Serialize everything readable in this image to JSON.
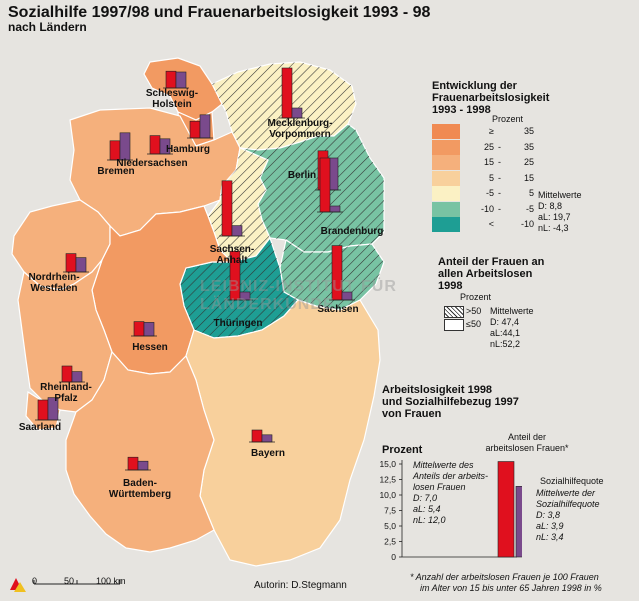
{
  "title": "Sozialhilfe 1997/98 und Frauenarbeitslosigkeit 1993 - 98",
  "subtitle": "nach Ländern",
  "legend1": {
    "title_lines": [
      "Entwicklung der",
      "Frauenarbeitslosigkeit",
      "1993 - 1998"
    ],
    "unit": "Prozent",
    "classes": [
      {
        "a": "≥",
        "b": "35",
        "color": "#f08a52"
      },
      {
        "a": "25",
        "b": "35",
        "color": "#f29a62"
      },
      {
        "a": "15",
        "b": "25",
        "color": "#f5b07c"
      },
      {
        "a": "5",
        "b": "15",
        "color": "#f8d09c"
      },
      {
        "a": "-5",
        "b": "5",
        "color": "#fbf1c4"
      },
      {
        "a": "-10",
        "b": "-5",
        "color": "#78c3a3"
      },
      {
        "a": "<",
        "b": "-10",
        "color": "#1e9e94"
      }
    ],
    "dash": "-",
    "means_title": "Mittelwerte",
    "means": [
      "D:    8,8",
      "aL:  19,7",
      "nL:  -4,3"
    ]
  },
  "legend2": {
    "title_lines": [
      "Anteil der Frauen an",
      "allen Arbeitslosen",
      "1998"
    ],
    "unit": "Prozent",
    "items": [
      ">50",
      "≤50"
    ],
    "means_title": "Mittelwerte",
    "means": [
      "D: 47,4",
      "aL:44,1",
      "nL:52,2"
    ]
  },
  "chart_title_lines": [
    "Arbeitslosigkeit 1998",
    "und Sozialhilfebezug 1997",
    "von Frauen"
  ],
  "chart_data": {
    "type": "bar",
    "categories": [
      "Anteil der arbeitslosen Frauen*",
      "Sozialhilfequote"
    ],
    "values": [
      15.4,
      11.4
    ],
    "ylabel": "Prozent",
    "ylim": [
      0,
      15
    ],
    "yticks": [
      "0",
      "2,5",
      "5,0",
      "7,5",
      "10,0",
      "12,5",
      "15,0"
    ],
    "colors": [
      "#e0101e",
      "#7a4a8c"
    ],
    "label_a_lines": [
      "Anteil der",
      "arbeitslosen Frauen*"
    ],
    "label_b": "Sozialhilfequote",
    "means_a": [
      "Mittelwerte des",
      "Anteils der arbeits-",
      "losen Frauen",
      "D:     7,0",
      "aL:    5,4",
      "nL:  12,0"
    ],
    "means_b": [
      "Mittelwerte der",
      "Sozialhilfequote",
      "D:     3,8",
      "aL:    3,9",
      "nL:    3,4"
    ]
  },
  "footnote_lines": [
    "*  Anzahl der arbeitslosen Frauen je 100 Frauen",
    "im Alter von 15 bis unter 65 Jahren 1998 in %"
  ],
  "scale": {
    "labels": [
      "0",
      "50",
      "100 km"
    ]
  },
  "author": "Autorin:   D.Stegmann",
  "watermark": "LEIBNIZ-INSTITUT FÜR LÄNDERKUNDE",
  "regions": [
    {
      "name": "Schleswig-\nHolstein",
      "fill": "#f29a62",
      "hatch": false,
      "bars": [
        4.2,
        4.0
      ]
    },
    {
      "name": "Mecklenburg-\nVorpommern",
      "fill": "#fbf1c4",
      "hatch": true,
      "bars": [
        12.5,
        2.5
      ]
    },
    {
      "name": "Hamburg",
      "fill": "#f29a62",
      "hatch": false,
      "bars": [
        4.2,
        5.8
      ]
    },
    {
      "name": "Bremen",
      "fill": "#f29a62",
      "hatch": false,
      "bars": [
        4.8,
        6.8
      ]
    },
    {
      "name": "Niedersachsen",
      "fill": "#f5b07c",
      "hatch": false,
      "bars": [
        4.6,
        3.8
      ]
    },
    {
      "name": "Berlin",
      "fill": "#78c3a3",
      "hatch": false,
      "bars": [
        9.8,
        8.0
      ]
    },
    {
      "name": "Brandenburg",
      "fill": "#78c3a3",
      "hatch": true,
      "bars": [
        13.5,
        1.5
      ]
    },
    {
      "name": "Sachsen-\nAnhalt",
      "fill": "#fbf1c4",
      "hatch": true,
      "bars": [
        13.8,
        2.6
      ]
    },
    {
      "name": "Nordrhein-\nWestfalen",
      "fill": "#f5b07c",
      "hatch": false,
      "bars": [
        4.6,
        3.6
      ]
    },
    {
      "name": "Sachsen",
      "fill": "#78c3a3",
      "hatch": true,
      "bars": [
        13.6,
        2.0
      ]
    },
    {
      "name": "Thüringen",
      "fill": "#1e9e94",
      "hatch": true,
      "bars": [
        12.2,
        2.0
      ]
    },
    {
      "name": "Hessen",
      "fill": "#f29a62",
      "hatch": false,
      "bars": [
        3.6,
        3.4
      ]
    },
    {
      "name": "Rheinland-\nPfalz",
      "fill": "#f5b07c",
      "hatch": false,
      "bars": [
        4.0,
        2.6
      ]
    },
    {
      "name": "Saarland",
      "fill": "#f5b07c",
      "hatch": false,
      "bars": [
        5.0,
        5.6
      ]
    },
    {
      "name": "Bayern",
      "fill": "#f8d09c",
      "hatch": false,
      "bars": [
        3.0,
        1.8
      ]
    },
    {
      "name": "Baden-\nWürttemberg",
      "fill": "#f5b07c",
      "hatch": false,
      "bars": [
        3.2,
        2.2
      ]
    }
  ]
}
